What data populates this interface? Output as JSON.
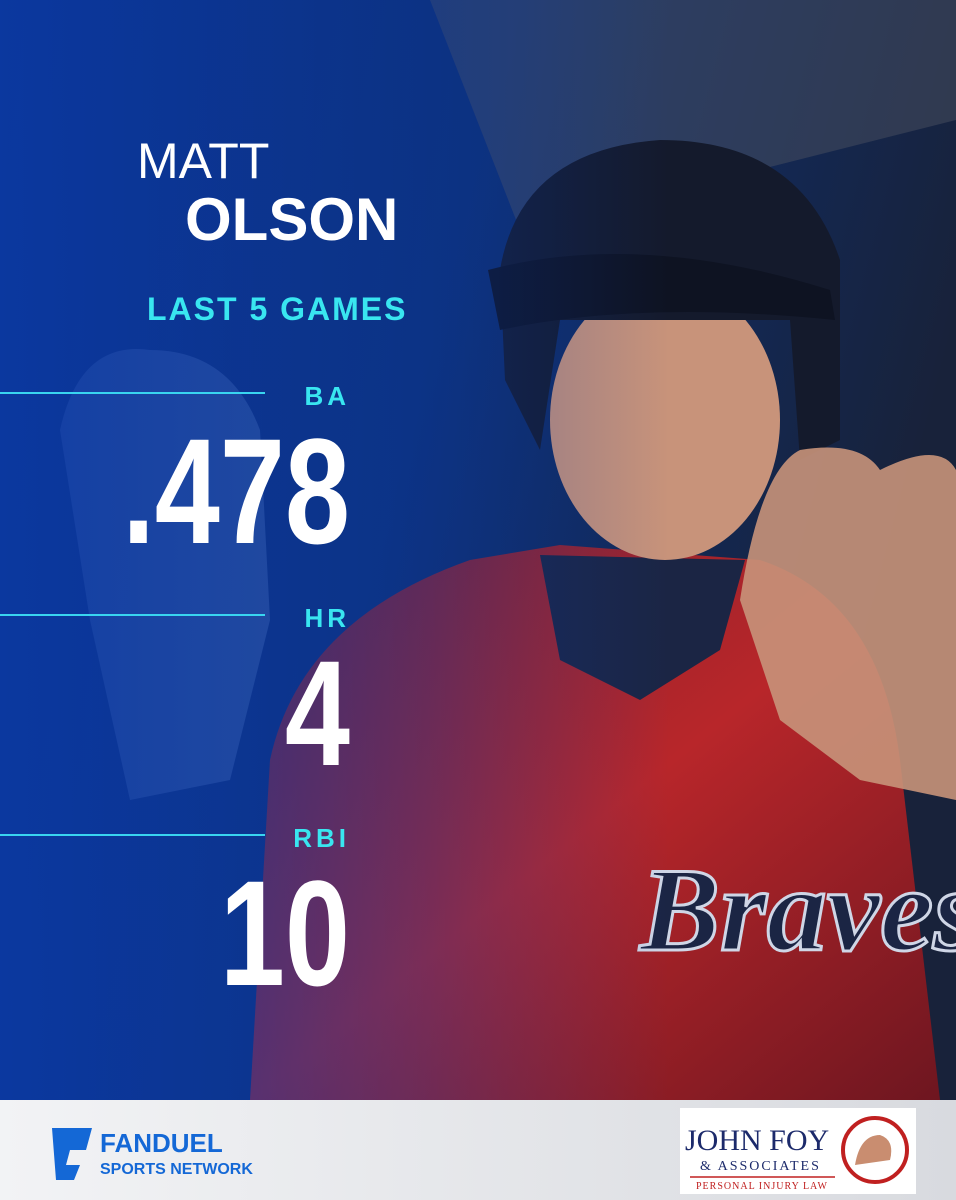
{
  "player": {
    "first_name": "MATT",
    "last_name": "OLSON"
  },
  "subtitle": "LAST 5 GAMES",
  "stats": [
    {
      "label": "BA",
      "value": ".478"
    },
    {
      "label": "HR",
      "value": "4"
    },
    {
      "label": "RBI",
      "value": "10"
    }
  ],
  "footer": {
    "brand": "FANDUEL",
    "brand_sub": "SPORTS NETWORK",
    "sponsor": "JOHN FOY",
    "sponsor_sub": "& ASSOCIATES",
    "sponsor_tag": "PERSONAL INJURY LAW"
  }
}
